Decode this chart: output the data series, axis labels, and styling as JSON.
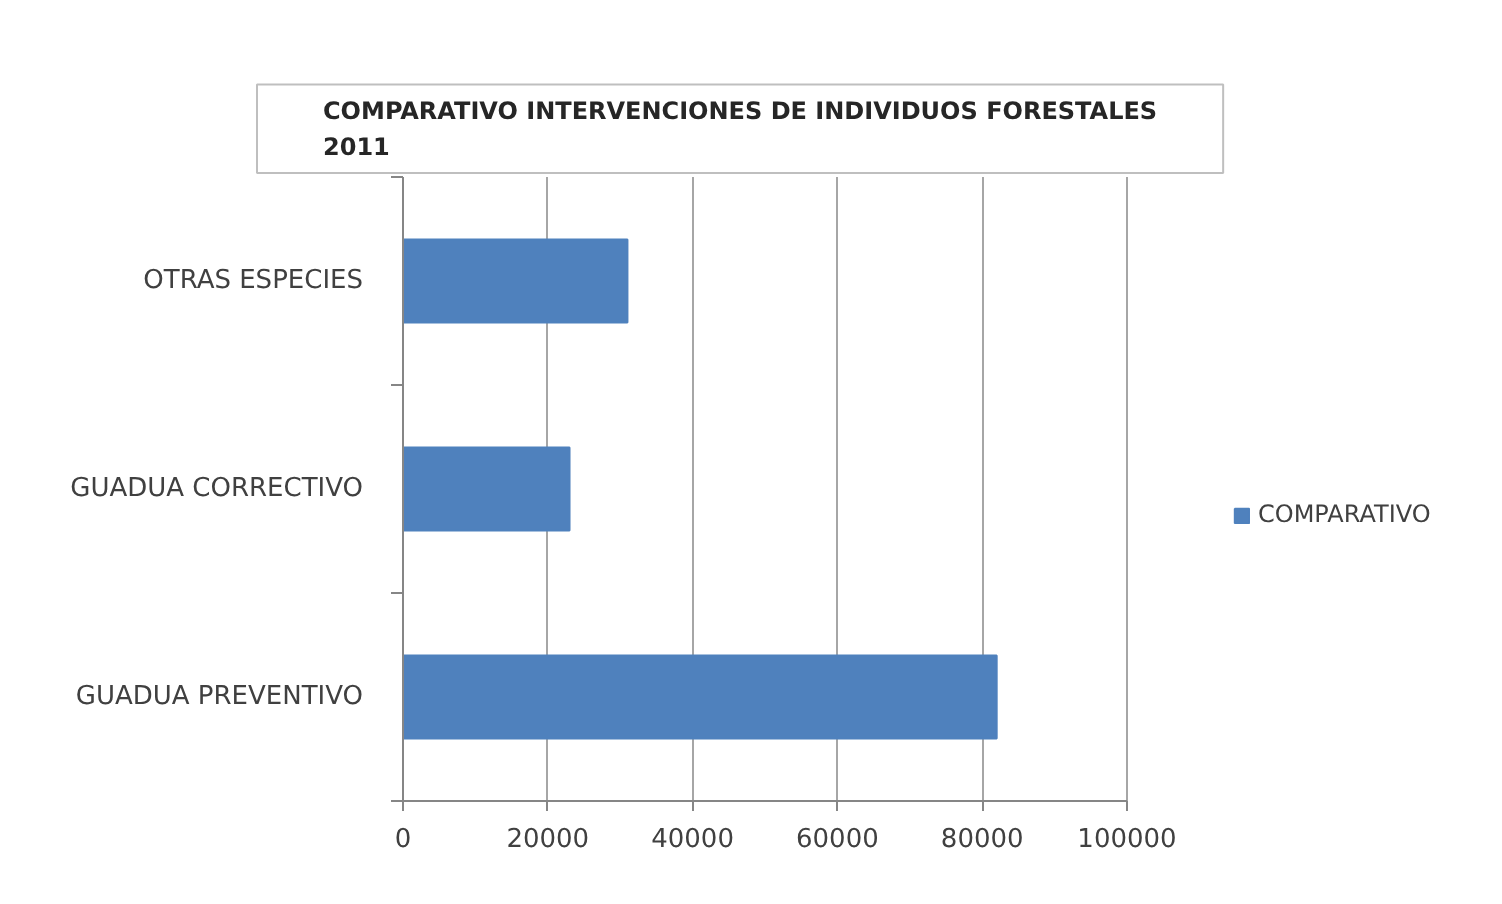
{
  "chart_data": {
    "type": "bar",
    "orientation": "horizontal",
    "title": "COMPARATIVO INTERVENCIONES DE INDIVIDUOS FORESTALES 2011",
    "categories": [
      "OTRAS ESPECIES",
      "GUADUA CORRECTIVO",
      "GUADUA PREVENTIVO"
    ],
    "series": [
      {
        "name": "COMPARATIVO",
        "color": "#4f81bd",
        "values": [
          31000,
          23000,
          82000
        ]
      }
    ],
    "xlim": [
      0,
      100000
    ],
    "xticks": [
      0,
      20000,
      40000,
      60000,
      80000,
      100000
    ],
    "grid": "x",
    "legend": "right"
  }
}
